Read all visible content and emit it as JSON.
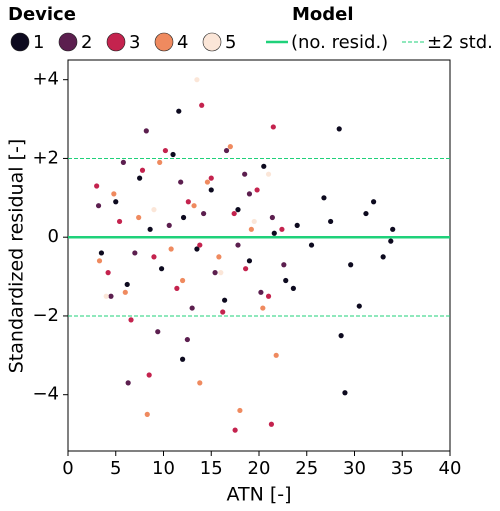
{
  "chart_data": {
    "type": "scatter",
    "xlabel": "ATN [-]",
    "ylabel": "Standardized residual [-]",
    "legend_titles": {
      "device": "Device",
      "model": "Model"
    },
    "xlim": [
      0,
      40
    ],
    "xticks": [
      0,
      5,
      10,
      15,
      20,
      25,
      30,
      35,
      40
    ],
    "ylim": [
      -5.43,
      4.5
    ],
    "yticks": [
      {
        "value": -4,
        "label": "−4"
      },
      {
        "value": -2,
        "label": "−2"
      },
      0,
      {
        "value": 2,
        "label": "+2"
      },
      {
        "value": 4,
        "label": "+4"
      }
    ],
    "reference_lines": [
      {
        "name": "(no. resid.)",
        "y": [
          0
        ],
        "color": "#1fd17a",
        "dashed": false
      },
      {
        "name": "±2 std.",
        "y": [
          2,
          -2
        ],
        "color": "#1fd17a",
        "dashed": true
      }
    ],
    "series": [
      {
        "name": "1",
        "color": "#0d0a1f",
        "x": [
          3.5,
          5,
          6.2,
          7.5,
          8.6,
          9.8,
          11,
          12,
          12.1,
          13.5,
          15,
          16.4,
          17.8,
          19,
          20.5,
          21.6,
          22.8,
          24,
          25.5,
          26.8,
          27.5,
          28.4,
          28.6,
          29,
          29.6,
          30.5,
          31.2,
          32,
          33,
          33.8,
          34,
          11.6,
          23.6
        ],
        "y": [
          -0.4,
          0.9,
          -1.2,
          1.5,
          0.2,
          -0.8,
          2.1,
          -3.1,
          0.5,
          -0.3,
          1.2,
          -1.6,
          0.7,
          -0.6,
          1.8,
          0.1,
          -1.1,
          0.3,
          -0.2,
          1,
          0.4,
          2.75,
          -2.5,
          -3.95,
          -0.7,
          -1.75,
          0.6,
          0.9,
          -0.5,
          -0.1,
          0.2,
          3.2,
          -1.3
        ]
      },
      {
        "name": "2",
        "color": "#5c1f4f",
        "x": [
          3.2,
          4.5,
          5.8,
          7,
          8.2,
          9.4,
          10.6,
          11.8,
          13,
          14.2,
          15.4,
          16.6,
          17.8,
          19,
          20.2,
          21.4,
          22.6,
          6.3,
          12.5,
          18.5
        ],
        "y": [
          0.8,
          -1.5,
          1.9,
          -0.4,
          2.7,
          -2.4,
          0.3,
          1.4,
          -1.8,
          0.6,
          -0.9,
          2.2,
          -0.2,
          1.1,
          -1.4,
          0.5,
          -0.7,
          -3.7,
          -2.6,
          1.6
        ]
      },
      {
        "name": "3",
        "color": "#c4234e",
        "x": [
          3,
          4.2,
          5.4,
          6.6,
          7.8,
          9,
          10.2,
          11.4,
          12.6,
          13.8,
          14,
          15,
          16.2,
          17.4,
          17.5,
          18.6,
          19.8,
          21,
          21.3,
          21.5,
          22.4,
          8.5
        ],
        "y": [
          1.3,
          -0.9,
          0.4,
          -2.1,
          1.7,
          -0.5,
          2.2,
          -1.3,
          0.9,
          -0.2,
          3.35,
          1.5,
          -1.9,
          0.6,
          -4.9,
          -0.8,
          1.2,
          -1.5,
          -4.75,
          2.8,
          0.2,
          -3.5
        ]
      },
      {
        "name": "4",
        "color": "#ef8a5f",
        "x": [
          3.3,
          4.8,
          6,
          7.4,
          8.3,
          9.6,
          10.8,
          12,
          13.2,
          13.8,
          14.6,
          15.8,
          17,
          18,
          19.2,
          20.4,
          21.8
        ],
        "y": [
          -0.6,
          1.1,
          -1.4,
          0.5,
          -4.5,
          1.9,
          -0.3,
          -1.1,
          0.8,
          -3.7,
          1.4,
          -0.5,
          2.3,
          -4.4,
          0.2,
          -1.8,
          -3
        ]
      },
      {
        "name": "5",
        "color": "#fbe6d8",
        "x": [
          4,
          9,
          13.5,
          16,
          19.5,
          21
        ],
        "y": [
          -1.5,
          0.7,
          4,
          -0.9,
          0.4,
          1.6
        ]
      }
    ]
  }
}
